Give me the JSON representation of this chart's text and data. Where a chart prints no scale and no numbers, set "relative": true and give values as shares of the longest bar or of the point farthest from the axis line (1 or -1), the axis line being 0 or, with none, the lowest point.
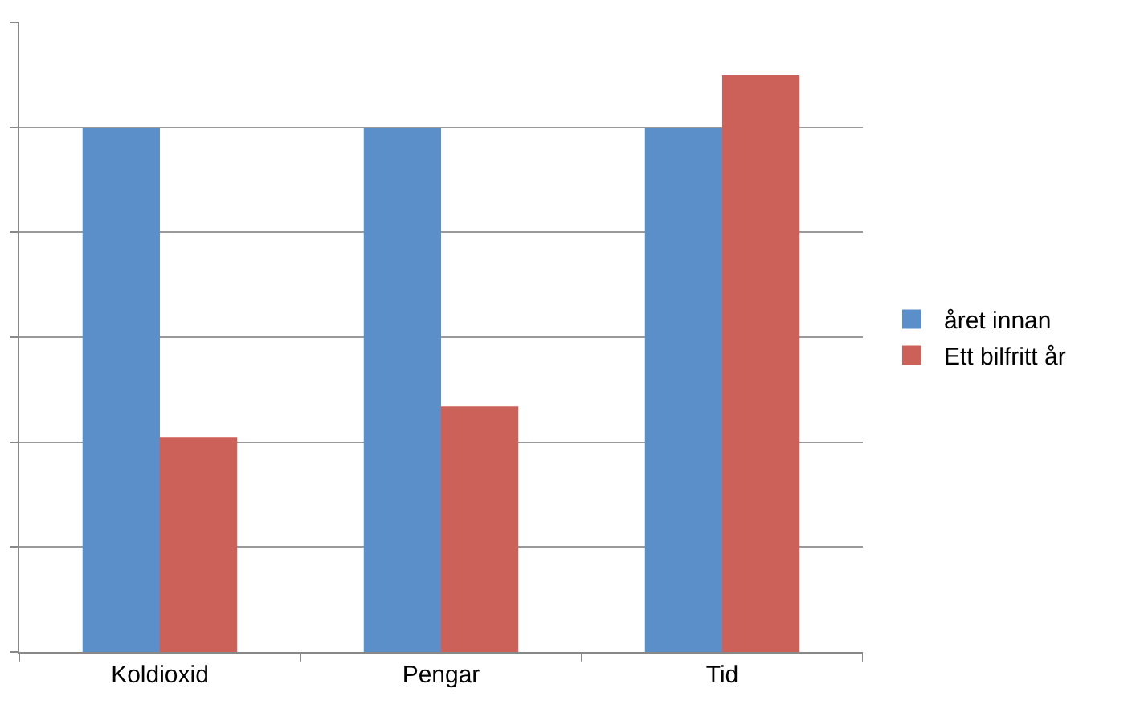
{
  "chart_data": {
    "type": "bar",
    "relative": true,
    "grid": "y",
    "legend": "right",
    "categories": [
      "Koldioxid",
      "Pengar",
      "Tid"
    ],
    "series": [
      {
        "name": "året innan",
        "color": "#5b8fc9",
        "values": [
          0.908,
          0.908,
          0.908
        ]
      },
      {
        "name": "Ett bilfritt år",
        "color": "#cc6159",
        "values": [
          0.373,
          0.426,
          1
        ]
      }
    ]
  }
}
